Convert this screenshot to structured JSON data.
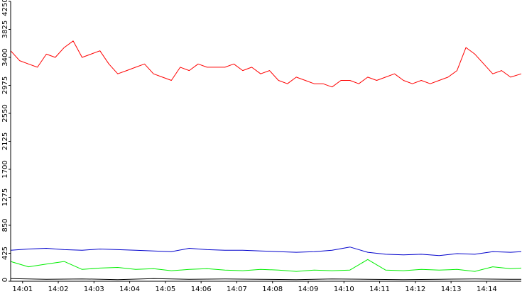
{
  "chart_data": {
    "type": "line",
    "title": "",
    "xlabel": "",
    "ylabel": "",
    "ylim": [
      0,
      4250
    ],
    "y_ticks": [
      "0",
      "425",
      "850",
      "1275",
      "1700",
      "2125",
      "2550",
      "2975",
      "3400",
      "3825",
      "4250"
    ],
    "x_ticks": [
      "14:01",
      "14:02",
      "14:03",
      "14:04",
      "14:05",
      "14:06",
      "14:07",
      "14:08",
      "14:09",
      "14:10",
      "14:11",
      "14:12",
      "14:13",
      "14:14"
    ],
    "x_range": [
      "14:00:40",
      "14:14:58"
    ],
    "grid": false,
    "legend": "none",
    "series": [
      {
        "color": "#ff0000",
        "x": [
          "14:00:40",
          "14:00:55",
          "14:01:10",
          "14:01:25",
          "14:01:40",
          "14:01:55",
          "14:02:10",
          "14:02:25",
          "14:02:40",
          "14:02:55",
          "14:03:10",
          "14:03:25",
          "14:03:40",
          "14:03:55",
          "14:04:10",
          "14:04:25",
          "14:04:40",
          "14:04:55",
          "14:05:10",
          "14:05:25",
          "14:05:40",
          "14:05:55",
          "14:06:10",
          "14:06:25",
          "14:06:40",
          "14:06:55",
          "14:07:10",
          "14:07:25",
          "14:07:40",
          "14:07:55",
          "14:08:10",
          "14:08:25",
          "14:08:40",
          "14:08:55",
          "14:09:10",
          "14:09:25",
          "14:09:40",
          "14:09:55",
          "14:10:10",
          "14:10:25",
          "14:10:40",
          "14:10:55",
          "14:11:10",
          "14:11:25",
          "14:11:40",
          "14:11:55",
          "14:12:10",
          "14:12:25",
          "14:12:40",
          "14:12:55",
          "14:13:10",
          "14:13:25",
          "14:13:40",
          "14:13:55",
          "14:14:10",
          "14:14:25",
          "14:14:40",
          "14:14:58"
        ],
        "y": [
          3500,
          3350,
          3300,
          3250,
          3450,
          3400,
          3550,
          3650,
          3400,
          3450,
          3500,
          3300,
          3150,
          3200,
          3250,
          3300,
          3150,
          3100,
          3050,
          3250,
          3200,
          3300,
          3250,
          3250,
          3250,
          3300,
          3200,
          3250,
          3150,
          3200,
          3050,
          3000,
          3100,
          3050,
          3000,
          3000,
          2950,
          3050,
          3050,
          3000,
          3100,
          3050,
          3100,
          3150,
          3050,
          3000,
          3050,
          3000,
          3050,
          3100,
          3200,
          3550,
          3450,
          3300,
          3150,
          3200,
          3100,
          3150
        ]
      },
      {
        "color": "#0000cc",
        "x": [
          "14:00:40",
          "14:01:10",
          "14:01:40",
          "14:02:10",
          "14:02:40",
          "14:03:10",
          "14:03:40",
          "14:04:10",
          "14:04:40",
          "14:05:10",
          "14:05:40",
          "14:06:10",
          "14:06:40",
          "14:07:10",
          "14:07:40",
          "14:08:10",
          "14:08:40",
          "14:09:10",
          "14:09:40",
          "14:10:10",
          "14:10:40",
          "14:11:10",
          "14:11:40",
          "14:12:10",
          "14:12:40",
          "14:13:10",
          "14:13:40",
          "14:14:10",
          "14:14:40",
          "14:14:58"
        ],
        "y": [
          470,
          490,
          500,
          480,
          470,
          490,
          480,
          470,
          460,
          450,
          500,
          480,
          470,
          470,
          460,
          450,
          440,
          450,
          470,
          520,
          440,
          410,
          400,
          410,
          390,
          420,
          410,
          450,
          440,
          450
        ]
      },
      {
        "color": "#00ee00",
        "x": [
          "14:00:40",
          "14:01:10",
          "14:01:40",
          "14:02:10",
          "14:02:40",
          "14:03:10",
          "14:03:40",
          "14:04:10",
          "14:04:40",
          "14:05:10",
          "14:05:40",
          "14:06:10",
          "14:06:40",
          "14:07:10",
          "14:07:40",
          "14:08:10",
          "14:08:40",
          "14:09:10",
          "14:09:40",
          "14:10:10",
          "14:10:40",
          "14:11:10",
          "14:11:40",
          "14:12:10",
          "14:12:40",
          "14:13:10",
          "14:13:40",
          "14:14:10",
          "14:14:40",
          "14:14:58"
        ],
        "y": [
          300,
          220,
          260,
          300,
          180,
          200,
          210,
          180,
          190,
          160,
          180,
          190,
          170,
          160,
          180,
          170,
          150,
          170,
          160,
          170,
          330,
          170,
          160,
          180,
          170,
          180,
          150,
          220,
          190,
          200
        ]
      },
      {
        "color": "#000000",
        "x": [
          "14:00:40",
          "14:01:40",
          "14:02:40",
          "14:03:40",
          "14:04:40",
          "14:05:40",
          "14:06:40",
          "14:07:40",
          "14:08:40",
          "14:09:40",
          "14:10:40",
          "14:11:40",
          "14:12:40",
          "14:13:40",
          "14:14:40",
          "14:14:58"
        ],
        "y": [
          40,
          30,
          35,
          25,
          40,
          30,
          35,
          30,
          25,
          35,
          30,
          25,
          30,
          35,
          30,
          30
        ]
      }
    ]
  }
}
